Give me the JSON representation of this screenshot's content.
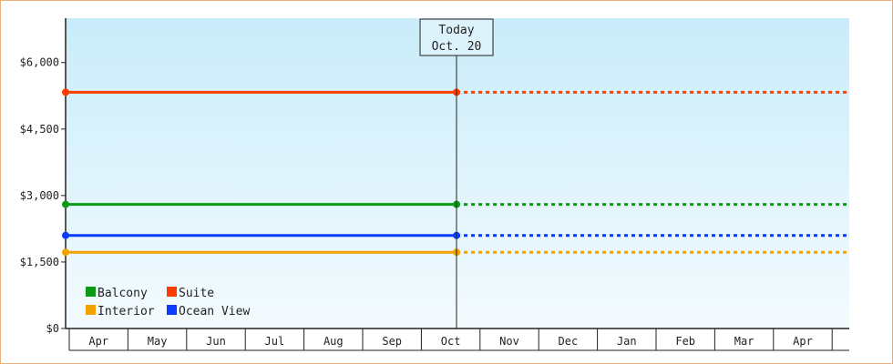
{
  "chart_data": {
    "type": "line",
    "title": "",
    "xlabel": "",
    "ylabel": "",
    "ylim": [
      0,
      7000
    ],
    "y_ticks": [
      {
        "value": 0,
        "label": "$0"
      },
      {
        "value": 1500,
        "label": "$1,500"
      },
      {
        "value": 3000,
        "label": "$3,000"
      },
      {
        "value": 4500,
        "label": "$4,500"
      },
      {
        "value": 6000,
        "label": "$6,000"
      }
    ],
    "x_categories": [
      "Apr",
      "May",
      "Jun",
      "Jul",
      "Aug",
      "Sep",
      "Oct",
      "Nov",
      "Dec",
      "Jan",
      "Feb",
      "Mar",
      "Apr"
    ],
    "today_marker": {
      "line1": "Today",
      "line2": "Oct. 20"
    },
    "series": [
      {
        "name": "Suite",
        "color": "#ff3d00",
        "value": 5330
      },
      {
        "name": "Balcony",
        "color": "#0a9a14",
        "value": 2800
      },
      {
        "name": "Ocean View",
        "color": "#0a3dff",
        "value": 2100
      },
      {
        "name": "Interior",
        "color": "#f2a200",
        "value": 1720
      }
    ],
    "legend": [
      {
        "name": "Balcony",
        "color": "#0a9a14"
      },
      {
        "name": "Suite",
        "color": "#ff3d00"
      },
      {
        "name": "Interior",
        "color": "#f2a200"
      },
      {
        "name": "Ocean View",
        "color": "#0a3dff"
      }
    ],
    "legend_position": "bottom-left",
    "background_gradient": [
      "#c9ecfa",
      "#f4fbfe"
    ],
    "grid": false
  }
}
